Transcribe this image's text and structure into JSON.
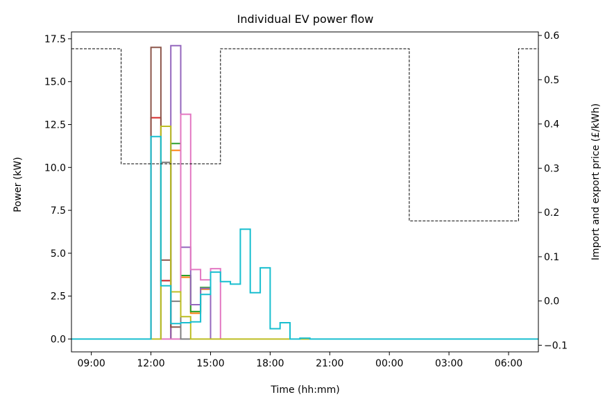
{
  "chart_data": {
    "type": "line",
    "title": "Individual EV power flow",
    "xlabel": "Time (hh:mm)",
    "ylabel": "Power (kW)",
    "y2label": "Import and export price (£/kWh)",
    "x_unit": "hours since 00:00 of day 1",
    "xlim": [
      8.0,
      31.5
    ],
    "ylim": [
      -0.75,
      17.9
    ],
    "y2lim": [
      -0.115,
      0.608
    ],
    "x_ticks": [
      {
        "x": 9,
        "label": "09:00"
      },
      {
        "x": 12,
        "label": "12:00"
      },
      {
        "x": 15,
        "label": "15:00"
      },
      {
        "x": 18,
        "label": "18:00"
      },
      {
        "x": 21,
        "label": "21:00"
      },
      {
        "x": 24,
        "label": "00:00"
      },
      {
        "x": 27,
        "label": "03:00"
      },
      {
        "x": 30,
        "label": "06:00"
      }
    ],
    "y_ticks": [
      {
        "v": 0,
        "label": "0.0"
      },
      {
        "v": 2.5,
        "label": "2.5"
      },
      {
        "v": 5,
        "label": "5.0"
      },
      {
        "v": 7.5,
        "label": "7.5"
      },
      {
        "v": 10,
        "label": "10.0"
      },
      {
        "v": 12.5,
        "label": "12.5"
      },
      {
        "v": 15,
        "label": "15.0"
      },
      {
        "v": 17.5,
        "label": "17.5"
      }
    ],
    "y2_ticks": [
      {
        "v": -0.1,
        "label": "−0.1"
      },
      {
        "v": 0.0,
        "label": "0.0"
      },
      {
        "v": 0.1,
        "label": "0.1"
      },
      {
        "v": 0.2,
        "label": "0.2"
      },
      {
        "v": 0.3,
        "label": "0.3"
      },
      {
        "v": 0.4,
        "label": "0.4"
      },
      {
        "v": 0.5,
        "label": "0.5"
      },
      {
        "v": 0.6,
        "label": "0.6"
      }
    ],
    "price_series": {
      "color": "#000000",
      "axis": "right",
      "style": "dashed-step",
      "x": [
        8.0,
        10.5,
        10.5,
        15.5,
        15.5,
        25.0,
        25.0,
        30.5,
        30.5,
        31.5
      ],
      "y": [
        0.57,
        0.57,
        0.31,
        0.31,
        0.57,
        0.57,
        0.181,
        0.181,
        0.57,
        0.57
      ]
    },
    "zero_line": {
      "color": "#008000",
      "value": 0
    },
    "series": [
      {
        "color": "#1f77b4",
        "x": [
          8.0,
          12.5,
          12.5,
          13.0,
          13.0,
          31.5
        ],
        "y": [
          0,
          0,
          3.4,
          3.4,
          0,
          0
        ]
      },
      {
        "color": "#ff7f0e",
        "x": [
          8.0,
          13.0,
          13.0,
          13.5,
          13.5,
          14.0,
          14.0,
          14.5,
          14.5,
          15.0,
          15.0,
          31.5
        ],
        "y": [
          0,
          0,
          11.0,
          11.0,
          3.6,
          3.6,
          1.5,
          1.5,
          2.9,
          2.9,
          0,
          0
        ]
      },
      {
        "color": "#2ca02c",
        "x": [
          8.0,
          13.0,
          13.0,
          13.5,
          13.5,
          14.0,
          14.0,
          14.5,
          14.5,
          15.0,
          15.0,
          31.5
        ],
        "y": [
          0,
          0,
          11.4,
          11.4,
          3.7,
          3.7,
          1.6,
          1.6,
          3.0,
          3.0,
          0,
          0
        ]
      },
      {
        "color": "#d62728",
        "x": [
          8.0,
          12.0,
          12.0,
          12.5,
          12.5,
          13.0,
          13.0,
          31.5
        ],
        "y": [
          0,
          0,
          12.9,
          12.9,
          3.4,
          3.4,
          0,
          0
        ]
      },
      {
        "color": "#9467bd",
        "x": [
          8.0,
          13.0,
          13.0,
          13.5,
          13.5,
          14.0,
          14.0,
          14.5,
          14.5,
          15.0,
          15.0,
          31.5
        ],
        "y": [
          0,
          0,
          17.1,
          17.1,
          5.35,
          5.35,
          2.0,
          2.0,
          2.95,
          2.95,
          0,
          0
        ]
      },
      {
        "color": "#8c564b",
        "x": [
          8.0,
          12.0,
          12.0,
          12.5,
          12.5,
          13.0,
          13.0,
          13.5,
          13.5,
          31.5
        ],
        "y": [
          0,
          0,
          17.0,
          17.0,
          4.6,
          4.6,
          0.7,
          0.7,
          0,
          0
        ]
      },
      {
        "color": "#e377c2",
        "x": [
          8.0,
          13.5,
          13.5,
          14.0,
          14.0,
          14.5,
          14.5,
          15.0,
          15.0,
          15.5,
          15.5,
          31.5
        ],
        "y": [
          0,
          0,
          13.1,
          13.1,
          4.05,
          4.05,
          3.45,
          3.45,
          4.1,
          4.1,
          0,
          0
        ]
      },
      {
        "color": "#7f7f7f",
        "x": [
          8.0,
          12.5,
          12.5,
          13.0,
          13.0,
          13.5,
          13.5,
          31.5
        ],
        "y": [
          0,
          0,
          10.3,
          10.3,
          2.2,
          2.2,
          0,
          0
        ]
      },
      {
        "color": "#bcbd22",
        "x": [
          8.0,
          12.5,
          12.5,
          13.0,
          13.0,
          13.5,
          13.5,
          14.0,
          14.0,
          31.5
        ],
        "y": [
          0,
          0,
          12.4,
          12.4,
          2.75,
          2.75,
          1.3,
          1.3,
          0,
          0
        ]
      },
      {
        "color": "#17becf",
        "x": [
          8.0,
          12.0,
          12.0,
          12.5,
          12.5,
          13.0,
          13.0,
          13.5,
          13.5,
          14.0,
          14.0,
          14.5,
          14.5,
          15.0,
          15.0,
          15.5,
          15.5,
          16.0,
          16.0,
          16.5,
          16.5,
          17.0,
          17.0,
          17.5,
          17.5,
          18.0,
          18.0,
          18.5,
          18.5,
          19.0,
          19.0,
          19.5,
          19.5,
          20.0,
          20.0,
          31.5
        ],
        "y": [
          0,
          0,
          11.8,
          11.8,
          3.1,
          3.1,
          0.9,
          0.9,
          0.95,
          0.95,
          1.0,
          1.0,
          2.6,
          2.6,
          3.9,
          3.9,
          3.35,
          3.35,
          3.2,
          3.2,
          6.4,
          6.4,
          2.7,
          2.7,
          4.15,
          4.15,
          0.6,
          0.6,
          0.95,
          0.95,
          0,
          0,
          0.05,
          0.05,
          0,
          0
        ]
      }
    ]
  }
}
